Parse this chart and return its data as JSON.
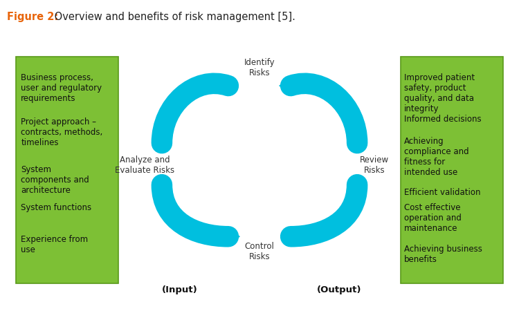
{
  "title_bold": "Figure 2:",
  "title_bold_color": "#E8640A",
  "title_rest": " Overview and benefits of risk management [5].",
  "title_color": "#222222",
  "title_fontsize": 10.5,
  "left_box_color": "#7DC035",
  "right_box_color": "#7DC035",
  "arrow_color": "#00BFDF",
  "left_items": [
    "Business process,\nuser and regulatory\nrequirements",
    "Project approach –\ncontracts, methods,\ntimelines",
    "System\ncomponents and\narchitecture",
    "System functions",
    "Experience from\nuse"
  ],
  "right_items": [
    "Improved patient\nsafety, product\nquality, and data\nintegrity",
    "Informed decisions",
    "Achieving\ncompliance and\nfitness for\nintended use",
    "Efficient validation",
    "Cost effective\noperation and\nmaintenance",
    "Achieving business\nbenefits"
  ],
  "label_identify": "Identify\nRisks",
  "label_analyze": "Analyze and\nEvaluate Risks",
  "label_control": "Control\nRisks",
  "label_review": "Review\nRisks",
  "label_input": "(Input)",
  "label_output": "(Output)",
  "text_fontsize": 8.5,
  "label_fontsize": 8.5,
  "io_fontsize": 9.5,
  "background_color": "#FFFFFF",
  "left_text_items_y": [
    3.72,
    3.0,
    2.22,
    1.6,
    1.08
  ],
  "right_text_items_y": [
    3.72,
    3.05,
    2.68,
    1.85,
    1.6,
    0.92
  ]
}
